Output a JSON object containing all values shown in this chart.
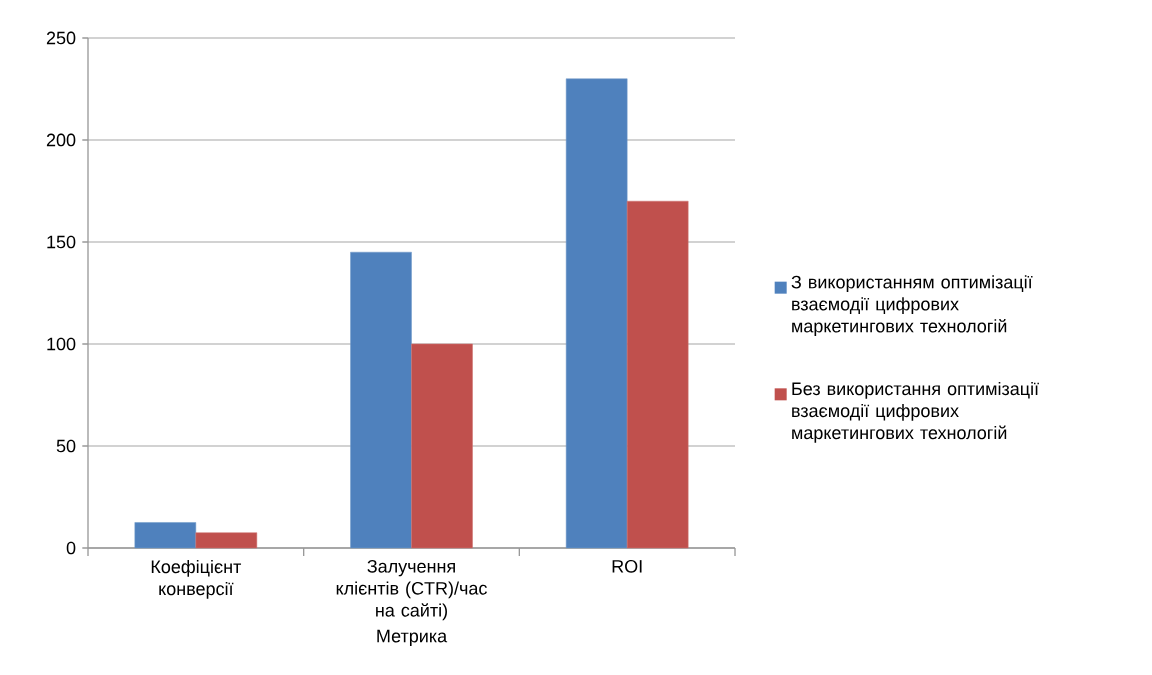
{
  "chart_data": {
    "type": "bar",
    "xlabel": "Метрика",
    "categories": [
      "Коефіцієнт конверсії",
      "Залучення клієнтів (CTR)/час на сайті)",
      "ROI"
    ],
    "series": [
      {
        "name": "З використанням оптимізації взаємодії цифрових маркетингових технологій",
        "color": "#4f81bd",
        "values": [
          12.5,
          145,
          230
        ]
      },
      {
        "name": "Без використання оптимізації взаємодії цифрових маркетингових технологій",
        "color": "#c0504d",
        "values": [
          7.5,
          100,
          170
        ]
      }
    ],
    "ylim": [
      0,
      250
    ],
    "yticks": [
      0,
      50,
      100,
      150,
      200,
      250
    ],
    "grid": "y",
    "legend": "right"
  }
}
